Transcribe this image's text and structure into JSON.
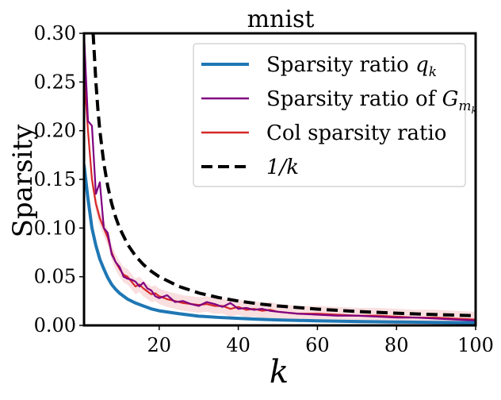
{
  "chart_data": {
    "type": "line",
    "title": "mnist",
    "xlabel": "k",
    "ylabel": "Sparsity",
    "xlim": [
      1,
      100
    ],
    "ylim": [
      0,
      0.3
    ],
    "xticks": [
      20,
      40,
      60,
      80,
      100
    ],
    "xtick_labels": [
      "20",
      "40",
      "60",
      "80",
      "100"
    ],
    "yticks": [
      0,
      0.05,
      0.1,
      0.15,
      0.2,
      0.25,
      0.3
    ],
    "ytick_labels": [
      "0.00",
      "0.05",
      "0.10",
      "0.15",
      "0.20",
      "0.25",
      "0.30"
    ],
    "grid": false,
    "legend_position": "top-right",
    "series": [
      {
        "name": "Sparsity ratio q_k",
        "legend": {
          "text": "Sparsity ratio ",
          "math": "q",
          "sub": "k"
        },
        "color": "#1f77b4",
        "style": "solid",
        "x": [
          1,
          2,
          3,
          4,
          5,
          6,
          7,
          8,
          9,
          10,
          12,
          14,
          16,
          18,
          20,
          25,
          30,
          35,
          40,
          45,
          50,
          60,
          70,
          80,
          90,
          100
        ],
        "y": [
          0.165,
          0.13,
          0.1,
          0.082,
          0.068,
          0.058,
          0.049,
          0.042,
          0.037,
          0.033,
          0.027,
          0.023,
          0.02,
          0.017,
          0.015,
          0.012,
          0.0095,
          0.0082,
          0.0072,
          0.0063,
          0.0056,
          0.0047,
          0.004,
          0.0035,
          0.0031,
          0.0028
        ]
      },
      {
        "name": "Sparsity ratio of G_{m_k}",
        "legend": {
          "text": "Sparsity ratio of ",
          "math": "G",
          "sub": "m",
          "subsub": "k"
        },
        "color": "#800080",
        "style": "solid",
        "x": [
          1,
          2,
          3,
          4,
          5,
          6,
          7,
          8,
          9,
          10,
          11,
          12,
          13,
          14,
          15,
          16,
          17,
          18,
          19,
          20,
          22,
          24,
          26,
          28,
          30,
          32,
          34,
          36,
          38,
          40,
          42,
          44,
          46,
          48,
          50,
          55,
          60,
          65,
          70,
          75,
          80,
          85,
          90,
          95,
          100
        ],
        "y": [
          0.3,
          0.21,
          0.205,
          0.135,
          0.147,
          0.1,
          0.095,
          0.073,
          0.065,
          0.06,
          0.05,
          0.048,
          0.047,
          0.045,
          0.04,
          0.044,
          0.038,
          0.036,
          0.03,
          0.028,
          0.031,
          0.024,
          0.025,
          0.022,
          0.02,
          0.024,
          0.022,
          0.019,
          0.023,
          0.017,
          0.018,
          0.016,
          0.017,
          0.015,
          0.014,
          0.012,
          0.011,
          0.01,
          0.01,
          0.009,
          0.008,
          0.008,
          0.007,
          0.006,
          0.005
        ]
      },
      {
        "name": "Col sparsity ratio",
        "legend": {
          "text": "Col sparsity ratio"
        },
        "color": "#d62728",
        "style": "solid",
        "band": 0.008,
        "x": [
          1,
          2,
          3,
          4,
          5,
          6,
          7,
          8,
          9,
          10,
          11,
          12,
          13,
          14,
          15,
          16,
          17,
          18,
          19,
          20,
          22,
          24,
          26,
          28,
          30,
          32,
          34,
          36,
          38,
          40,
          42,
          44,
          46,
          48,
          50,
          55,
          60,
          65,
          70,
          75,
          80,
          85,
          90,
          95,
          100
        ],
        "y": [
          0.26,
          0.2,
          0.15,
          0.125,
          0.11,
          0.1,
          0.09,
          0.075,
          0.065,
          0.058,
          0.052,
          0.05,
          0.045,
          0.04,
          0.042,
          0.038,
          0.035,
          0.032,
          0.033,
          0.03,
          0.027,
          0.025,
          0.023,
          0.022,
          0.021,
          0.022,
          0.02,
          0.02,
          0.017,
          0.019,
          0.016,
          0.017,
          0.015,
          0.016,
          0.014,
          0.012,
          0.012,
          0.011,
          0.01,
          0.01,
          0.009,
          0.008,
          0.008,
          0.007,
          0.006
        ]
      },
      {
        "name": "1/k",
        "legend": {
          "math": "1/k"
        },
        "color": "#000000",
        "style": "dashed",
        "x": [
          3.3,
          3.5,
          4,
          4.5,
          5,
          6,
          7,
          8,
          9,
          10,
          12,
          14,
          16,
          18,
          20,
          25,
          30,
          35,
          40,
          45,
          50,
          60,
          70,
          80,
          90,
          100
        ],
        "y": [
          0.3,
          0.2857,
          0.25,
          0.2222,
          0.2,
          0.1667,
          0.1429,
          0.125,
          0.1111,
          0.1,
          0.0833,
          0.0714,
          0.0625,
          0.0556,
          0.05,
          0.04,
          0.0333,
          0.0286,
          0.025,
          0.0222,
          0.02,
          0.0167,
          0.0143,
          0.0125,
          0.0111,
          0.01
        ]
      }
    ]
  }
}
